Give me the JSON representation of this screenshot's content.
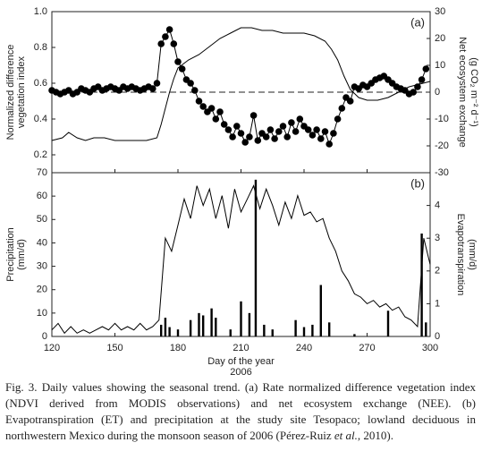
{
  "chart_data": [
    {
      "type": "line",
      "annotation": "(a)",
      "ylabel": [
        "Normalized difference",
        "vegetation index"
      ],
      "y2label": [
        "Net ecosystem exchange",
        "(g CO₂ m⁻² d⁻¹)"
      ],
      "xlim": [
        120,
        300
      ],
      "xticks": [
        120,
        150,
        180,
        210,
        240,
        270,
        300
      ],
      "ylim": [
        0.1,
        1.0
      ],
      "yticks": [
        0.2,
        0.4,
        0.6,
        0.8,
        {
          "value": 1,
          "label": "1.0"
        }
      ],
      "y2lim": [
        -30,
        30
      ],
      "y2ticks": [
        -30,
        -20,
        -10,
        0,
        10,
        20,
        30
      ],
      "reference_y2": 0,
      "series": [
        {
          "type": "line",
          "marker": "o",
          "color": "#000000",
          "x": [
            120,
            122,
            124,
            126,
            128,
            130,
            132,
            134,
            136,
            138,
            140,
            142,
            144,
            146,
            148,
            150,
            152,
            154,
            156,
            158,
            160,
            162,
            164,
            166,
            168,
            170,
            172,
            174,
            176,
            178,
            180,
            182,
            184,
            186,
            188,
            190,
            192,
            194,
            196,
            198,
            200,
            202,
            204,
            206,
            208,
            210,
            212,
            214,
            216,
            218,
            220,
            222,
            224,
            226,
            228,
            230,
            232,
            234,
            236,
            238,
            240,
            242,
            244,
            246,
            248,
            250,
            252,
            254,
            256,
            258,
            260,
            262,
            264,
            266,
            268,
            270,
            272,
            274,
            276,
            278,
            280,
            282,
            284,
            286,
            288,
            290,
            292,
            294,
            296,
            298
          ],
          "values": [
            0.56,
            0.55,
            0.54,
            0.55,
            0.56,
            0.54,
            0.55,
            0.57,
            0.56,
            0.55,
            0.57,
            0.58,
            0.56,
            0.57,
            0.58,
            0.57,
            0.56,
            0.58,
            0.57,
            0.58,
            0.57,
            0.56,
            0.57,
            0.58,
            0.57,
            0.6,
            0.82,
            0.86,
            0.9,
            0.82,
            0.72,
            0.68,
            0.62,
            0.6,
            0.56,
            0.5,
            0.47,
            0.44,
            0.46,
            0.4,
            0.44,
            0.37,
            0.34,
            0.3,
            0.36,
            0.32,
            0.27,
            0.3,
            0.42,
            0.28,
            0.32,
            0.3,
            0.34,
            0.29,
            0.33,
            0.36,
            0.3,
            0.38,
            0.33,
            0.4,
            0.36,
            0.34,
            0.31,
            0.34,
            0.29,
            0.33,
            0.26,
            0.32,
            0.4,
            0.46,
            0.52,
            0.5,
            0.58,
            0.57,
            0.59,
            0.58,
            0.6,
            0.62,
            0.63,
            0.64,
            0.62,
            0.6,
            0.58,
            0.57,
            0.56,
            0.54,
            0.55,
            0.58,
            0.62,
            0.68
          ]
        },
        {
          "type": "line",
          "axis": "y2",
          "color": "#000000",
          "x": [
            120,
            125,
            128,
            132,
            136,
            140,
            145,
            150,
            155,
            160,
            165,
            170,
            172,
            174,
            176,
            178,
            180,
            185,
            190,
            195,
            200,
            205,
            210,
            215,
            220,
            225,
            230,
            235,
            240,
            245,
            250,
            253,
            256,
            259,
            262,
            266,
            270,
            275,
            280,
            285,
            290,
            295,
            300
          ],
          "values": [
            -18,
            -17,
            -15,
            -17,
            -18,
            -17,
            -17,
            -18,
            -18,
            -18,
            -18,
            -17,
            -12,
            -6,
            0,
            5,
            9,
            12,
            14,
            17,
            20,
            22,
            24,
            24,
            23,
            23,
            22,
            22,
            22,
            21,
            19,
            16,
            12,
            6,
            1,
            -2,
            -3,
            -3,
            -2,
            0,
            2,
            3,
            4
          ]
        }
      ]
    },
    {
      "type": "bar",
      "annotation": "(b)",
      "ylabel": [
        "Precipitation",
        "(mm/d)"
      ],
      "y2label": [
        "Evapotranspiration",
        "(mm/d)"
      ],
      "xlabel": [
        "Day of the year",
        "2006"
      ],
      "xlim": [
        120,
        300
      ],
      "xticks": [
        120,
        150,
        180,
        210,
        240,
        270,
        300
      ],
      "ylim": [
        0,
        70
      ],
      "yticks": [
        0,
        10,
        20,
        30,
        40,
        50,
        60,
        70
      ],
      "y2lim": [
        0,
        5
      ],
      "y2ticks": [
        0,
        1,
        2,
        3,
        4
      ],
      "series": [
        {
          "type": "bar",
          "color": "#000000",
          "x": [
            172,
            174,
            176,
            180,
            186,
            190,
            192,
            196,
            198,
            205,
            210,
            214,
            217,
            221,
            225,
            236,
            240,
            244,
            248,
            252,
            264,
            280,
            296,
            298
          ],
          "values": [
            5,
            8,
            4,
            3,
            7,
            10,
            9,
            12,
            8,
            3,
            15,
            10,
            67,
            5,
            3,
            7,
            4,
            5,
            22,
            6,
            1,
            11,
            44,
            6
          ]
        },
        {
          "type": "line",
          "axis": "y2",
          "color": "#000000",
          "x": [
            120,
            123,
            126,
            129,
            132,
            135,
            138,
            141,
            144,
            147,
            150,
            153,
            156,
            159,
            162,
            165,
            168,
            171,
            174,
            177,
            180,
            183,
            186,
            189,
            192,
            195,
            198,
            201,
            204,
            207,
            210,
            213,
            216,
            219,
            222,
            225,
            228,
            231,
            234,
            237,
            240,
            243,
            246,
            249,
            252,
            255,
            258,
            261,
            264,
            267,
            270,
            273,
            276,
            279,
            282,
            285,
            288,
            291,
            294,
            297,
            300
          ],
          "values": [
            0.2,
            0.4,
            0.1,
            0.3,
            0.1,
            0.2,
            0.1,
            0.2,
            0.3,
            0.2,
            0.4,
            0.2,
            0.3,
            0.2,
            0.4,
            0.2,
            0.3,
            0.5,
            3.0,
            2.6,
            3.4,
            4.2,
            3.6,
            4.6,
            4.0,
            4.5,
            3.6,
            4.3,
            3.3,
            4.5,
            3.8,
            4.2,
            4.6,
            3.9,
            4.5,
            4.0,
            3.4,
            4.1,
            3.6,
            4.3,
            3.7,
            3.8,
            3.5,
            3.6,
            3.0,
            2.6,
            2.0,
            1.7,
            1.3,
            1.2,
            1.0,
            1.1,
            0.9,
            1.0,
            0.8,
            0.9,
            0.6,
            0.5,
            0.3,
            3.0,
            2.2
          ]
        }
      ]
    }
  ],
  "caption": [
    "Fig. 3. Daily values showing the seasonal trend. (a) Rate normalized difference vegetation index (NDVI derived from MODIS observations) and net ecosystem exchange (NEE). (b) Evapotranspiration (ET) and precipitation at the study site Tesopaco; lowland deciduous in northwestern Mexico during the monsoon season of 2006 (Pérez-Ruiz ",
    "et al.",
    ", 2010)."
  ]
}
